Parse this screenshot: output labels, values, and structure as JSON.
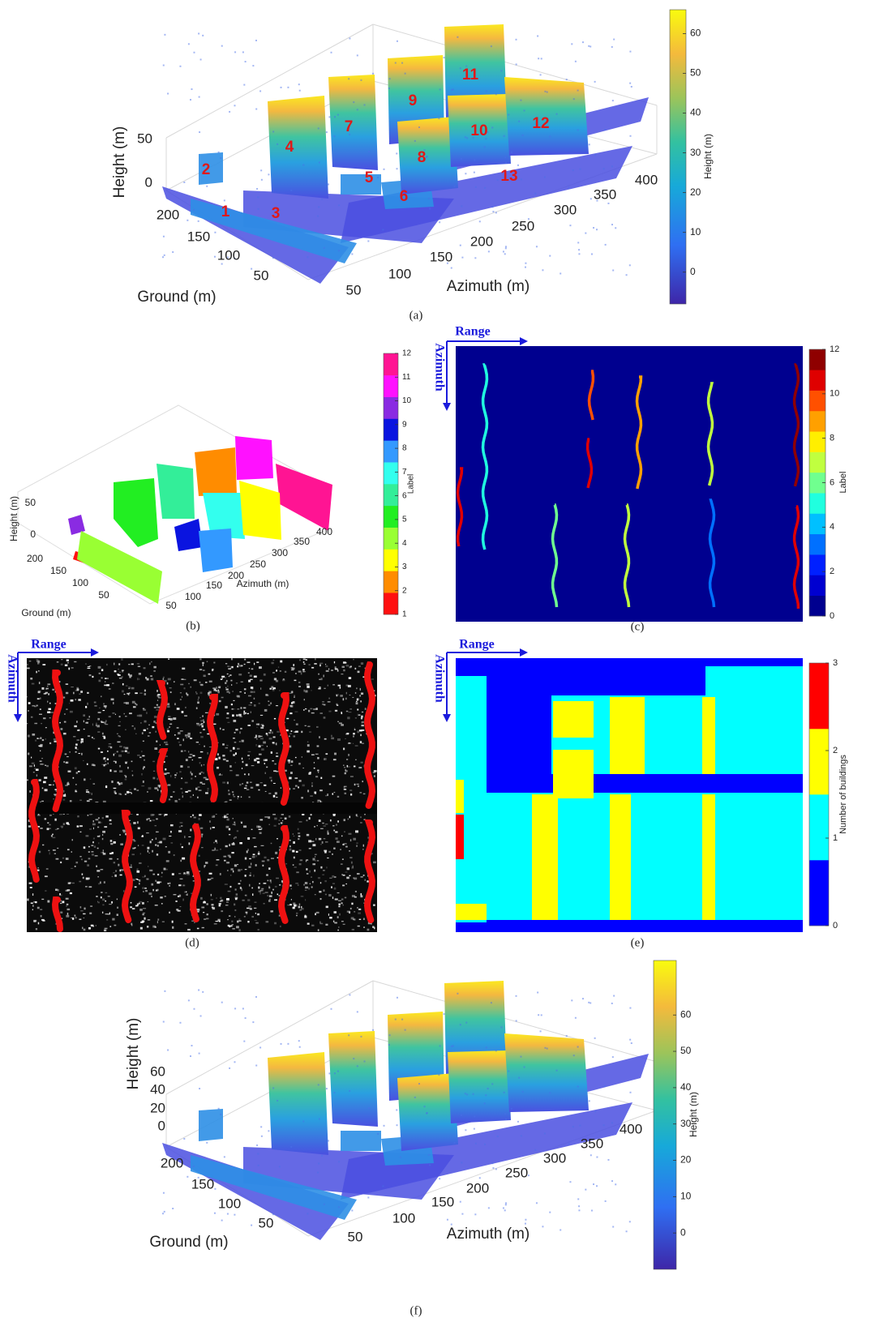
{
  "panels": [
    {
      "caption": "(a)",
      "z_label": "Height (m)",
      "z_ticks": [
        50,
        0
      ],
      "y_label": "Ground (m)",
      "y_ticks": [
        200,
        150,
        100,
        50
      ],
      "x_label": "Azimuth (m)",
      "x_ticks": [
        50,
        100,
        150,
        200,
        250,
        300,
        350,
        400
      ],
      "colorbar": {
        "label": "Height (m)",
        "ticks": [
          60,
          50,
          40,
          30,
          20,
          10,
          0
        ],
        "lim": [
          -8,
          66
        ]
      },
      "building_labels": [
        1,
        2,
        3,
        4,
        5,
        6,
        7,
        8,
        9,
        10,
        11,
        12,
        13
      ]
    },
    {
      "caption": "(b)",
      "z_label": "Height (m)",
      "z_ticks": [
        50,
        0
      ],
      "y_label": "Ground (m)",
      "y_ticks": [
        200,
        150,
        100,
        50
      ],
      "x_label": "Azimuth (m)",
      "x_ticks": [
        50,
        100,
        150,
        200,
        250,
        300,
        350,
        400
      ],
      "colorbar": {
        "label": "Label",
        "ticks": [
          12,
          11,
          10,
          9,
          8,
          7,
          6,
          5,
          4,
          3,
          2,
          1
        ],
        "lim": [
          1,
          12
        ],
        "colors": [
          "#ff1010",
          "#ff8c00",
          "#ffff00",
          "#99ff33",
          "#22ee22",
          "#33ee99",
          "#33ffee",
          "#3399ff",
          "#0a14e0",
          "#8a2be2",
          "#ff11ff",
          "#ff1493"
        ]
      }
    },
    {
      "caption": "(c)",
      "range_label": "Range",
      "azimuth_label": "Azimuth",
      "colorbar": {
        "label": "Label",
        "ticks": [
          12,
          10,
          8,
          6,
          4,
          2,
          0
        ],
        "lim": [
          0,
          12
        ],
        "colors": [
          "#00008f",
          "#0000d0",
          "#0020ff",
          "#0070ff",
          "#00c0ff",
          "#20ffdf",
          "#70ff8f",
          "#c0ff3f",
          "#ffef00",
          "#ffa000",
          "#ff5000",
          "#df0000",
          "#8f0000"
        ]
      }
    },
    {
      "caption": "(d)",
      "range_label": "Range",
      "azimuth_label": "Azimuth"
    },
    {
      "caption": "(e)",
      "range_label": "Range",
      "azimuth_label": "Azimuth",
      "colorbar": {
        "label": "Number of buildings",
        "ticks": [
          3,
          2,
          1,
          0
        ],
        "lim": [
          0,
          3
        ],
        "colors": [
          "#0000ff",
          "#00ffff",
          "#ffff00",
          "#ff0000"
        ]
      }
    },
    {
      "caption": "(f)",
      "z_label": "Height (m)",
      "z_ticks": [
        60,
        40,
        20,
        0
      ],
      "y_label": "Ground (m)",
      "y_ticks": [
        200,
        150,
        100,
        50
      ],
      "x_label": "Azimuth (m)",
      "x_ticks": [
        50,
        100,
        150,
        200,
        250,
        300,
        350,
        400
      ],
      "colorbar": {
        "label": "Height (m)",
        "ticks": [
          60,
          50,
          40,
          30,
          20,
          10,
          0
        ],
        "lim": [
          -10,
          75
        ]
      }
    }
  ]
}
